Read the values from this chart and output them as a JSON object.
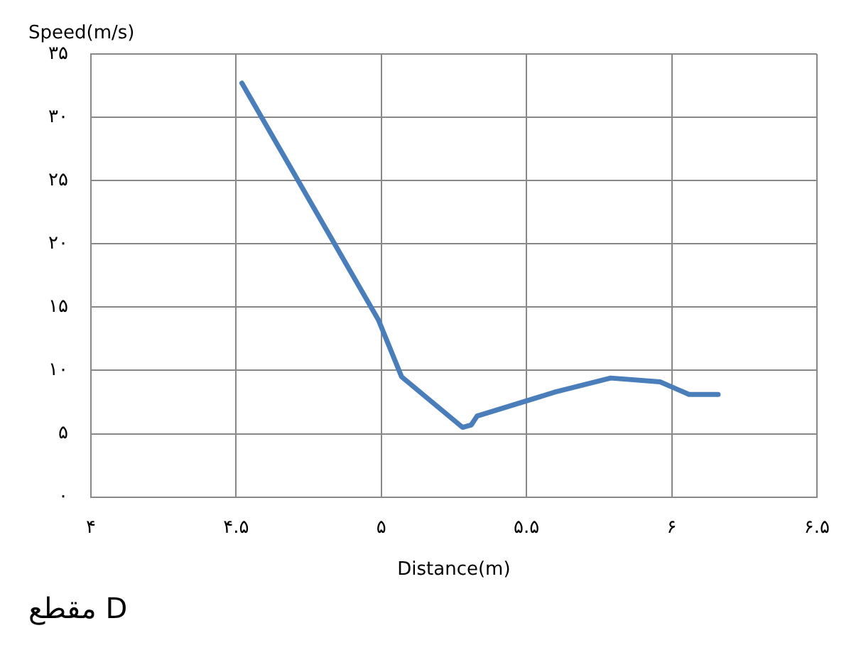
{
  "chart_data": {
    "type": "line",
    "xlabel": "Distance(m)",
    "ylabel": "Speed(m/s)",
    "annotations": [
      "مقطع D"
    ],
    "x": [
      4.52,
      4.99,
      5.07,
      5.28,
      5.31,
      5.33,
      5.6,
      5.79,
      5.96,
      6.01,
      6.06,
      6.16
    ],
    "series": [
      {
        "color": "#4a7ebb",
        "values": [
          32.7,
          14,
          9.5,
          5.5,
          5.7,
          6.4,
          8.3,
          9.4,
          9.1,
          8.6,
          8.1,
          8.1
        ]
      }
    ],
    "xlim": [
      4,
      6.5
    ],
    "xticks": [
      {
        "value": 4,
        "label": "۴"
      },
      {
        "value": 4.5,
        "label": "۴.۵"
      },
      {
        "value": 5,
        "label": "۵"
      },
      {
        "value": 5.5,
        "label": "۵.۵"
      },
      {
        "value": 6,
        "label": "۶"
      },
      {
        "value": 6.5,
        "label": "۶.۵"
      }
    ],
    "ylim": [
      0,
      35
    ],
    "yticks": [
      {
        "value": 0,
        "label": "۰"
      },
      {
        "value": 5,
        "label": "۵"
      },
      {
        "value": 10,
        "label": "۱۰"
      },
      {
        "value": 15,
        "label": "۱۵"
      },
      {
        "value": 20,
        "label": "۲۰"
      },
      {
        "value": 25,
        "label": "۲۵"
      },
      {
        "value": 30,
        "label": "۳۰"
      },
      {
        "value": 35,
        "label": "۳۵"
      }
    ],
    "grid": true,
    "legend": false,
    "marker": "none",
    "line_style": "solid"
  }
}
